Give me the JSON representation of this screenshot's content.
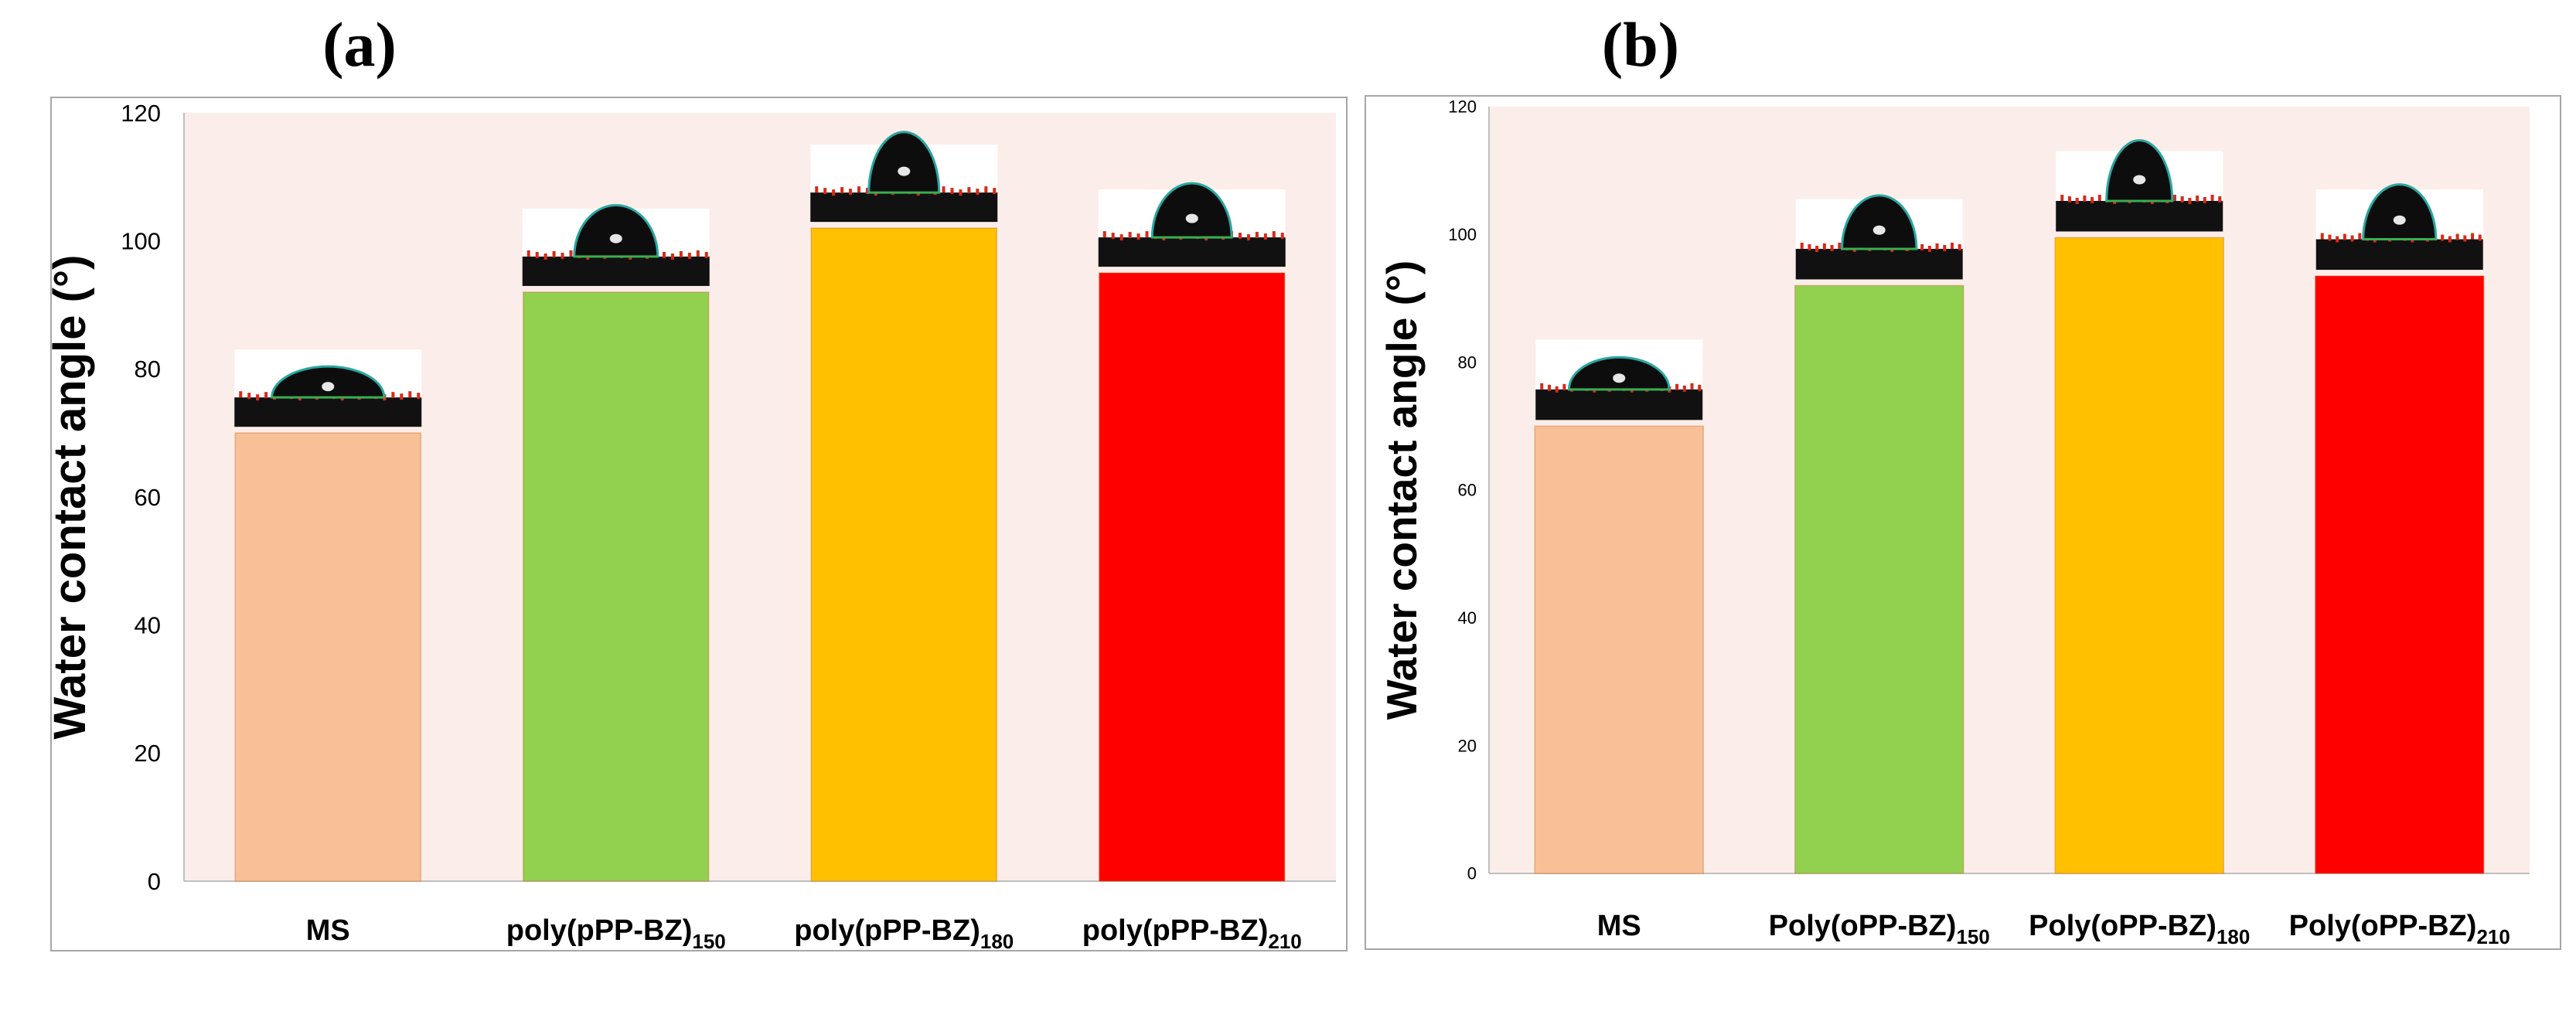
{
  "chart_data": [
    {
      "type": "bar",
      "panel_label": "(a)",
      "title": "",
      "xlabel": "",
      "ylabel": "Water contact angle (°)",
      "ylim": [
        0,
        120
      ],
      "yticks": [
        0,
        20,
        40,
        60,
        80,
        100,
        120
      ],
      "grid": false,
      "legend": "none",
      "categories": [
        {
          "base": "MS",
          "sub": ""
        },
        {
          "base": "poly(pPP-BZ)",
          "sub": "150"
        },
        {
          "base": "poly(pPP-BZ)",
          "sub": "180"
        },
        {
          "base": "poly(pPP-BZ)",
          "sub": "210"
        }
      ],
      "values": [
        70,
        92,
        102,
        95
      ],
      "colors": [
        "#F8C096",
        "#92D050",
        "#FFC000",
        "#FF0000"
      ],
      "plot_background": "#FBEDE9",
      "inset_images": [
        "water-droplet-photo",
        "water-droplet-photo",
        "water-droplet-photo",
        "water-droplet-photo"
      ]
    },
    {
      "type": "bar",
      "panel_label": "(b)",
      "title": "",
      "xlabel": "",
      "ylabel": "Water contact angle (°)",
      "ylim": [
        0,
        120
      ],
      "yticks": [
        0,
        20,
        40,
        60,
        80,
        100,
        120
      ],
      "grid": false,
      "legend": "none",
      "categories": [
        {
          "base": "MS",
          "sub": ""
        },
        {
          "base": "Poly(oPP-BZ)",
          "sub": "150"
        },
        {
          "base": "Poly(oPP-BZ)",
          "sub": "180"
        },
        {
          "base": "Poly(oPP-BZ)",
          "sub": "210"
        }
      ],
      "values": [
        70,
        92,
        99.5,
        93.5
      ],
      "colors": [
        "#F8C096",
        "#92D050",
        "#FFC000",
        "#FF0000"
      ],
      "plot_background": "#FBEDE9",
      "inset_images": [
        "water-droplet-photo",
        "water-droplet-photo",
        "water-droplet-photo",
        "water-droplet-photo"
      ]
    }
  ]
}
